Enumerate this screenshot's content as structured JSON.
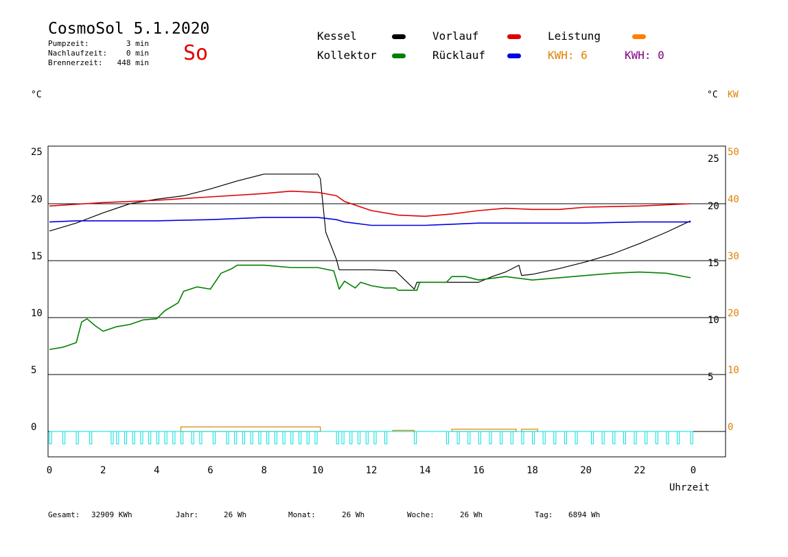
{
  "header": {
    "title": "CosmoSol 5.1.2020",
    "pumpzeit_label": "Pumpzeit:",
    "pumpzeit_value": "3 min",
    "nachlauf_label": "Nachlaufzeit:",
    "nachlauf_value": "0 min",
    "brenner_label": "Brennerzeit:",
    "brenner_value": "448 min",
    "weekday": "So"
  },
  "legend": {
    "kessel": "Kessel",
    "vorlauf": "Vorlauf",
    "leistung": "Leistung",
    "kollektor": "Kollektor",
    "ruecklauf": "Rücklauf",
    "kwh1": "KWH: 6",
    "kwh2": "KWH: 0",
    "colors": {
      "kessel": "#000000",
      "vorlauf": "#e00000",
      "leistung": "#ff8000",
      "kollektor": "#008000",
      "ruecklauf": "#0000e0",
      "kwh1": "#e08000",
      "kwh2": "#800080"
    }
  },
  "units": {
    "left": "°C",
    "right_c": "°C",
    "right_kw": "KW"
  },
  "footer": {
    "gesamt_label": "Gesamt:",
    "gesamt_value": "32909 KWh",
    "jahr_label": "Jahr:",
    "jahr_value": "26 Wh",
    "monat_label": "Monat:",
    "monat_value": "26 Wh",
    "woche_label": "Woche:",
    "woche_value": "26 Wh",
    "tag_label": "Tag:",
    "tag_value": "6894 Wh"
  },
  "chart_data": {
    "type": "line",
    "xlabel": "Uhrzeit",
    "xlim": [
      0,
      24
    ],
    "x_ticks": [
      "0",
      "2",
      "4",
      "6",
      "8",
      "10",
      "12",
      "14",
      "16",
      "18",
      "20",
      "22",
      "0"
    ],
    "ylim": [
      -2,
      25
    ],
    "y_ticks_left": [
      "25",
      "20",
      "15",
      "10",
      "5",
      "0"
    ],
    "y_ticks_right_c": [
      "25",
      "20",
      "15",
      "10",
      "5"
    ],
    "y_ticks_right_kw": [
      "50",
      "40",
      "30",
      "20",
      "10",
      "0"
    ],
    "y_ticks_values": [
      25,
      20,
      15,
      10,
      5,
      0
    ],
    "hlines": [
      20,
      15,
      10,
      5,
      0
    ],
    "series": [
      {
        "name": "Kessel",
        "color": "#000000",
        "points": [
          [
            0,
            17.6
          ],
          [
            1,
            18.3
          ],
          [
            2,
            19.2
          ],
          [
            3,
            20.0
          ],
          [
            4,
            20.4
          ],
          [
            5,
            20.7
          ],
          [
            6,
            21.3
          ],
          [
            7,
            22.0
          ],
          [
            8,
            22.6
          ],
          [
            9,
            22.6
          ],
          [
            10,
            22.6
          ],
          [
            10.1,
            22.2
          ],
          [
            10.3,
            17.5
          ],
          [
            10.7,
            15.1
          ],
          [
            10.8,
            14.2
          ],
          [
            12,
            14.2
          ],
          [
            12.9,
            14.1
          ],
          [
            13.6,
            12.5
          ],
          [
            13.7,
            13.1
          ],
          [
            15,
            13.1
          ],
          [
            16,
            13.1
          ],
          [
            16.5,
            13.6
          ],
          [
            17,
            14.0
          ],
          [
            17.5,
            14.6
          ],
          [
            17.6,
            13.7
          ],
          [
            18,
            13.8
          ],
          [
            19,
            14.3
          ],
          [
            20,
            14.9
          ],
          [
            21,
            15.6
          ],
          [
            22,
            16.5
          ],
          [
            23,
            17.5
          ],
          [
            23.9,
            18.5
          ]
        ]
      },
      {
        "name": "Vorlauf",
        "color": "#e00000",
        "points": [
          [
            0,
            19.8
          ],
          [
            2,
            20.1
          ],
          [
            4,
            20.3
          ],
          [
            6,
            20.6
          ],
          [
            8,
            20.9
          ],
          [
            9,
            21.1
          ],
          [
            10,
            21.0
          ],
          [
            10.7,
            20.7
          ],
          [
            11,
            20.2
          ],
          [
            12,
            19.4
          ],
          [
            13,
            19.0
          ],
          [
            14,
            18.9
          ],
          [
            15,
            19.1
          ],
          [
            16,
            19.4
          ],
          [
            17,
            19.6
          ],
          [
            18,
            19.5
          ],
          [
            19,
            19.5
          ],
          [
            20,
            19.7
          ],
          [
            22,
            19.8
          ],
          [
            23.9,
            20.0
          ]
        ]
      },
      {
        "name": "Rücklauf",
        "color": "#0000e0",
        "points": [
          [
            0,
            18.4
          ],
          [
            1,
            18.5
          ],
          [
            2,
            18.5
          ],
          [
            4,
            18.5
          ],
          [
            6,
            18.6
          ],
          [
            8,
            18.8
          ],
          [
            10,
            18.8
          ],
          [
            10.7,
            18.6
          ],
          [
            11,
            18.4
          ],
          [
            12,
            18.1
          ],
          [
            14,
            18.1
          ],
          [
            15,
            18.2
          ],
          [
            16,
            18.3
          ],
          [
            18,
            18.3
          ],
          [
            20,
            18.3
          ],
          [
            22,
            18.4
          ],
          [
            23.9,
            18.4
          ]
        ]
      },
      {
        "name": "Kollektor",
        "color": "#008000",
        "points": [
          [
            0,
            7.2
          ],
          [
            0.5,
            7.4
          ],
          [
            1,
            7.8
          ],
          [
            1.2,
            9.6
          ],
          [
            1.4,
            9.9
          ],
          [
            1.7,
            9.3
          ],
          [
            2,
            8.8
          ],
          [
            2.5,
            9.2
          ],
          [
            3,
            9.4
          ],
          [
            3.5,
            9.8
          ],
          [
            4,
            9.9
          ],
          [
            4.3,
            10.6
          ],
          [
            4.8,
            11.3
          ],
          [
            5,
            12.3
          ],
          [
            5.5,
            12.7
          ],
          [
            6,
            12.5
          ],
          [
            6.4,
            13.9
          ],
          [
            6.8,
            14.3
          ],
          [
            7,
            14.6
          ],
          [
            8,
            14.6
          ],
          [
            9,
            14.4
          ],
          [
            10,
            14.4
          ],
          [
            10.6,
            14.1
          ],
          [
            10.8,
            12.5
          ],
          [
            11,
            13.2
          ],
          [
            11.4,
            12.6
          ],
          [
            11.6,
            13.1
          ],
          [
            12,
            12.8
          ],
          [
            12.5,
            12.6
          ],
          [
            12.9,
            12.6
          ],
          [
            13,
            12.4
          ],
          [
            13.7,
            12.4
          ],
          [
            13.8,
            13.1
          ],
          [
            14.8,
            13.1
          ],
          [
            15,
            13.6
          ],
          [
            15.5,
            13.6
          ],
          [
            16,
            13.3
          ],
          [
            17,
            13.6
          ],
          [
            18,
            13.3
          ],
          [
            19,
            13.5
          ],
          [
            20,
            13.7
          ],
          [
            21,
            13.9
          ],
          [
            22,
            14.0
          ],
          [
            23,
            13.9
          ],
          [
            23.9,
            13.5
          ]
        ]
      }
    ],
    "leistung_blocks": [
      [
        4.9,
        10.1,
        0.4
      ],
      [
        12.8,
        13.6,
        0.1
      ],
      [
        15.0,
        17.4,
        0.2
      ],
      [
        17.6,
        18.2,
        0.2
      ]
    ],
    "pump_pulses": [
      [
        0,
        0.08
      ],
      [
        0.5,
        0.58
      ],
      [
        1.0,
        1.08
      ],
      [
        1.5,
        1.58
      ],
      [
        2.3,
        2.38
      ],
      [
        2.5,
        2.58
      ],
      [
        2.8,
        2.88
      ],
      [
        3.1,
        3.18
      ],
      [
        3.4,
        3.48
      ],
      [
        3.7,
        3.78
      ],
      [
        4.0,
        4.08
      ],
      [
        4.3,
        4.38
      ],
      [
        4.6,
        4.68
      ],
      [
        4.9,
        4.98
      ],
      [
        5.3,
        5.38
      ],
      [
        5.6,
        5.68
      ],
      [
        6.1,
        6.18
      ],
      [
        6.6,
        6.68
      ],
      [
        6.9,
        6.98
      ],
      [
        7.2,
        7.28
      ],
      [
        7.5,
        7.58
      ],
      [
        7.8,
        7.88
      ],
      [
        8.1,
        8.18
      ],
      [
        8.4,
        8.48
      ],
      [
        8.7,
        8.78
      ],
      [
        9.0,
        9.08
      ],
      [
        9.3,
        9.38
      ],
      [
        9.6,
        9.68
      ],
      [
        9.9,
        9.98
      ],
      [
        10.7,
        10.78
      ],
      [
        10.9,
        10.98
      ],
      [
        11.2,
        11.28
      ],
      [
        11.5,
        11.58
      ],
      [
        11.8,
        11.88
      ],
      [
        12.1,
        12.18
      ],
      [
        12.5,
        12.58
      ],
      [
        13.6,
        13.68
      ],
      [
        14.8,
        14.88
      ],
      [
        15.2,
        15.28
      ],
      [
        15.6,
        15.68
      ],
      [
        16.0,
        16.08
      ],
      [
        16.4,
        16.48
      ],
      [
        16.8,
        16.88
      ],
      [
        17.2,
        17.28
      ],
      [
        17.6,
        17.68
      ],
      [
        18.0,
        18.08
      ],
      [
        18.4,
        18.48
      ],
      [
        18.8,
        18.88
      ],
      [
        19.2,
        19.28
      ],
      [
        19.6,
        19.68
      ],
      [
        20.2,
        20.28
      ],
      [
        20.6,
        20.68
      ],
      [
        21.0,
        21.08
      ],
      [
        21.4,
        21.48
      ],
      [
        21.8,
        21.88
      ],
      [
        22.2,
        22.28
      ],
      [
        22.6,
        22.68
      ],
      [
        23.0,
        23.08
      ],
      [
        23.4,
        23.48
      ],
      [
        23.9,
        23.98
      ]
    ],
    "pump_color": "#00e0e0"
  }
}
